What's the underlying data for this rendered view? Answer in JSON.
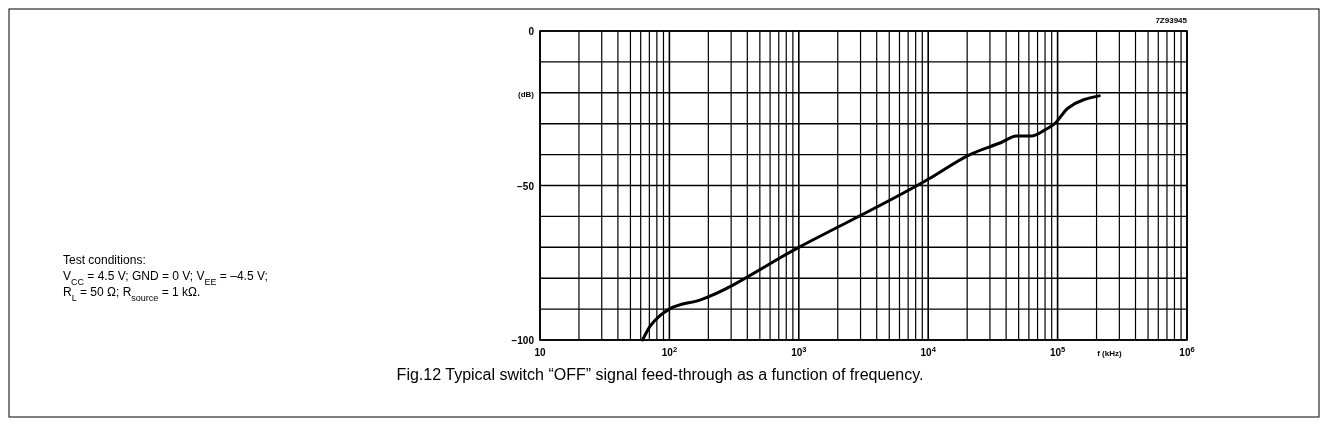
{
  "chart_data": {
    "type": "line",
    "title": "Fig.12  Typical switch “OFF” signal feed-through as a function of frequency.",
    "xlabel": "f (kHz)",
    "ylabel": "(dB)",
    "annotations": [
      "7Z93945",
      "Test conditions:",
      "V$_{CC}$ = 4.5 V; GND = 0 V; V$_{EE}$ = –4.5 V;",
      "R$_{L}$ = 50 Ω; R$_{source}$ = 1 kΩ."
    ],
    "log": "x",
    "grid": true,
    "marker": "none",
    "line_style": "solid",
    "xlim": [
      10,
      1000000
    ],
    "ylim": [
      -100,
      0
    ],
    "xticks": [
      {
        "value": 10,
        "label": "10"
      },
      {
        "value": 20,
        "label": null
      },
      {
        "value": 30,
        "label": null
      },
      {
        "value": 40,
        "label": null
      },
      {
        "value": 50,
        "label": null
      },
      {
        "value": 60,
        "label": null
      },
      {
        "value": 70,
        "label": null
      },
      {
        "value": 80,
        "label": null
      },
      {
        "value": 90,
        "label": null
      },
      {
        "value": 100,
        "label": "10$^{2}$"
      },
      {
        "value": 200,
        "label": null
      },
      {
        "value": 300,
        "label": null
      },
      {
        "value": 400,
        "label": null
      },
      {
        "value": 500,
        "label": null
      },
      {
        "value": 600,
        "label": null
      },
      {
        "value": 700,
        "label": null
      },
      {
        "value": 800,
        "label": null
      },
      {
        "value": 900,
        "label": null
      },
      {
        "value": 1000,
        "label": "10$^{3}$"
      },
      {
        "value": 2000,
        "label": null
      },
      {
        "value": 3000,
        "label": null
      },
      {
        "value": 4000,
        "label": null
      },
      {
        "value": 5000,
        "label": null
      },
      {
        "value": 6000,
        "label": null
      },
      {
        "value": 7000,
        "label": null
      },
      {
        "value": 8000,
        "label": null
      },
      {
        "value": 9000,
        "label": null
      },
      {
        "value": 10000,
        "label": "10$^{4}$"
      },
      {
        "value": 20000,
        "label": null
      },
      {
        "value": 30000,
        "label": null
      },
      {
        "value": 40000,
        "label": null
      },
      {
        "value": 50000,
        "label": null
      },
      {
        "value": 60000,
        "label": null
      },
      {
        "value": 70000,
        "label": null
      },
      {
        "value": 80000,
        "label": null
      },
      {
        "value": 90000,
        "label": null
      },
      {
        "value": 100000,
        "label": "10$^{5}$"
      },
      {
        "value": 200000,
        "label": null
      },
      {
        "value": 300000,
        "label": null
      },
      {
        "value": 400000,
        "label": null
      },
      {
        "value": 500000,
        "label": null
      },
      {
        "value": 600000,
        "label": null
      },
      {
        "value": 700000,
        "label": null
      },
      {
        "value": 800000,
        "label": null
      },
      {
        "value": 900000,
        "label": null
      },
      {
        "value": 1000000,
        "label": "10$^{6}$"
      }
    ],
    "yticks": [
      {
        "value": -100,
        "label": "−100"
      },
      {
        "value": -90,
        "label": null
      },
      {
        "value": -80,
        "label": null
      },
      {
        "value": -70,
        "label": null
      },
      {
        "value": -60,
        "label": null
      },
      {
        "value": -50,
        "label": "−50"
      },
      {
        "value": -40,
        "label": null
      },
      {
        "value": -30,
        "label": null
      },
      {
        "value": -20,
        "label": null
      },
      {
        "value": -10,
        "label": null
      },
      {
        "value": 0,
        "label": "0"
      }
    ],
    "series": [
      {
        "color": "#000000",
        "x": [
          62,
          71,
          85,
          100,
          174,
          1000,
          10000,
          21000,
          37000,
          48000,
          63000,
          80000,
          95000,
          120000,
          210000
        ],
        "values": [
          -100,
          -95.5,
          -92,
          -90,
          -87,
          -70,
          -48,
          -40,
          -36,
          -34,
          -34,
          -32,
          -30,
          -25,
          -21
        ]
      }
    ]
  }
}
